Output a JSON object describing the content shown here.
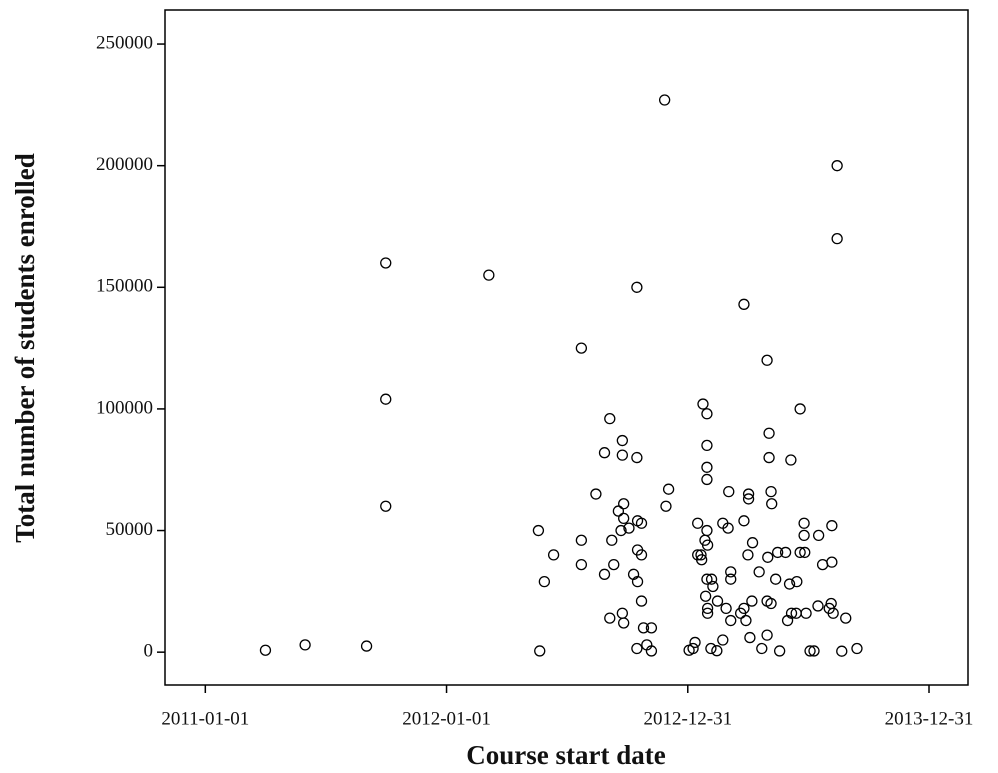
{
  "chart_data": {
    "type": "scatter",
    "x_label": "Course start date",
    "y_label": "Total number of students enrolled",
    "color": "#000000",
    "xlim": [
      "2010-11-01",
      "2014-02-28"
    ],
    "xticks": [
      "2011-01-01",
      "2012-01-01",
      "2012-12-31",
      "2013-12-31"
    ],
    "ylim": [
      -13500,
      264000
    ],
    "yticks": [
      0,
      50000,
      100000,
      150000,
      200000,
      250000
    ],
    "x": [
      "2011-04-02",
      "2011-06-01",
      "2011-09-02",
      "2011-10-01",
      "2011-10-01",
      "2011-10-01",
      "2012-03-05",
      "2012-05-21",
      "2012-05-19",
      "2012-05-28",
      "2012-06-11",
      "2012-07-23",
      "2012-07-23",
      "2012-07-23",
      "2012-08-14",
      "2012-08-27",
      "2012-08-27",
      "2012-09-04",
      "2012-09-04",
      "2012-09-10",
      "2012-09-07",
      "2012-09-17",
      "2012-09-21",
      "2012-09-23",
      "2012-09-23",
      "2012-09-25",
      "2012-09-25",
      "2012-09-23",
      "2012-09-25",
      "2012-10-03",
      "2012-10-10",
      "2012-10-15",
      "2012-10-15",
      "2012-10-16",
      "2012-10-22",
      "2012-10-16",
      "2012-10-22",
      "2012-10-16",
      "2012-10-22",
      "2012-10-15",
      "2012-10-25",
      "2012-10-30",
      "2012-11-06",
      "2012-11-06",
      "2012-11-26",
      "2012-11-28",
      "2012-12-02",
      "2013-01-02",
      "2013-01-08",
      "2013-01-11",
      "2013-01-15",
      "2013-01-15",
      "2013-01-20",
      "2013-01-23",
      "2013-01-29",
      "2013-01-29",
      "2013-01-29",
      "2013-01-29",
      "2013-01-26",
      "2013-01-30",
      "2013-01-29",
      "2013-01-21",
      "2013-01-29",
      "2013-02-05",
      "2013-01-30",
      "2013-01-30",
      "2013-01-27",
      "2013-02-07",
      "2013-02-04",
      "2013-02-13",
      "2013-02-22",
      "2013-02-22",
      "2013-03-03",
      "2013-03-02",
      "2013-02-14",
      "2013-02-27",
      "2013-03-06",
      "2013-03-06",
      "2013-03-06",
      "2013-03-26",
      "2013-03-26",
      "2013-03-26",
      "2013-03-21",
      "2013-03-29",
      "2013-04-02",
      "2013-04-02",
      "2013-04-01",
      "2013-04-08",
      "2013-04-07",
      "2013-04-04",
      "2013-04-18",
      "2013-04-22",
      "2013-04-30",
      "2013-05-03",
      "2013-05-03",
      "2013-05-06",
      "2013-05-07",
      "2013-05-01",
      "2013-04-30",
      "2013-05-06",
      "2013-04-30",
      "2013-05-13",
      "2013-05-16",
      "2013-05-19",
      "2013-05-28",
      "2013-06-03",
      "2013-05-31",
      "2013-06-06",
      "2013-06-05",
      "2013-06-14",
      "2013-06-13",
      "2013-06-19",
      "2013-06-25",
      "2013-06-25",
      "2013-06-19",
      "2013-06-26",
      "2013-06-28",
      "2013-07-04",
      "2013-07-10",
      "2013-07-16",
      "2013-07-23",
      "2013-07-17",
      "2013-08-02",
      "2013-08-06",
      "2013-08-06",
      "2013-08-05",
      "2013-08-08",
      "2013-08-14",
      "2013-08-14",
      "2013-08-21",
      "2013-08-27",
      "2013-09-13"
    ],
    "values": [
      800,
      3000,
      2500,
      160000,
      104000,
      60000,
      155000,
      500,
      50000,
      29000,
      40000,
      125000,
      46000,
      36000,
      65000,
      32000,
      82000,
      96000,
      14000,
      36000,
      46000,
      58000,
      50000,
      87000,
      81000,
      61000,
      55000,
      16000,
      12000,
      51000,
      32000,
      80000,
      150000,
      54000,
      53000,
      42000,
      40000,
      29000,
      21000,
      1500,
      10000,
      3000,
      10000,
      500,
      227000,
      60000,
      67000,
      800,
      1500,
      4000,
      53000,
      40000,
      40000,
      102000,
      98000,
      85000,
      76000,
      71000,
      46000,
      44000,
      50000,
      38000,
      30000,
      30000,
      18000,
      16000,
      23000,
      27000,
      1500,
      600,
      5000,
      53000,
      66000,
      51000,
      21000,
      18000,
      33000,
      30000,
      13000,
      143000,
      54000,
      18000,
      16000,
      13000,
      65000,
      63000,
      40000,
      45000,
      21000,
      6000,
      33000,
      1500,
      120000,
      90000,
      80000,
      66000,
      61000,
      39000,
      21000,
      20000,
      7000,
      30000,
      41000,
      500,
      41000,
      28000,
      13000,
      16000,
      79000,
      29000,
      16000,
      100000,
      53000,
      48000,
      41000,
      41000,
      16000,
      500,
      500,
      19000,
      36000,
      48000,
      18000,
      52000,
      37000,
      20000,
      16000,
      200000,
      170000,
      400,
      14000,
      1500
    ]
  }
}
